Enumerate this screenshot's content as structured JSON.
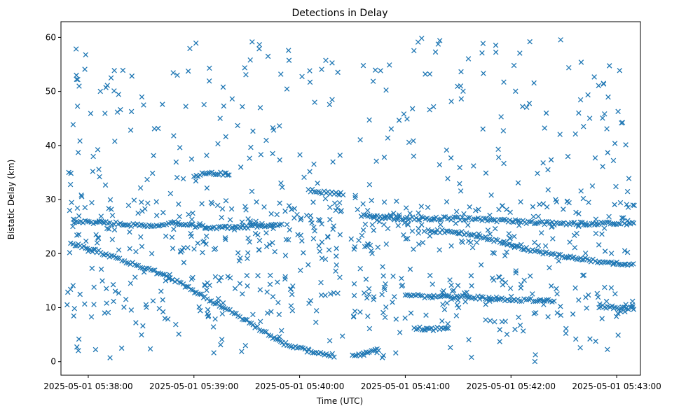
{
  "chart_data": {
    "type": "scatter",
    "title": "Detections in Delay",
    "xlabel": "Time (UTC)",
    "ylabel": "Bistatic Delay (km)",
    "x_unit": "seconds after 2025-05-01 05:37:00 UTC",
    "xlim": [
      44.5,
      373.5
    ],
    "ylim": [
      -2.5,
      62.9
    ],
    "x_ticks": [
      {
        "value": 60,
        "label": "2025-05-01 05:38:00"
      },
      {
        "value": 120,
        "label": "2025-05-01 05:39:00"
      },
      {
        "value": 180,
        "label": "2025-05-01 05:40:00"
      },
      {
        "value": 240,
        "label": "2025-05-01 05:41:00"
      },
      {
        "value": 300,
        "label": "2025-05-01 05:42:00"
      },
      {
        "value": 360,
        "label": "2025-05-01 05:43:00"
      }
    ],
    "y_ticks": [
      {
        "value": 0,
        "label": "0"
      },
      {
        "value": 10,
        "label": "10"
      },
      {
        "value": 20,
        "label": "20"
      },
      {
        "value": 30,
        "label": "30"
      },
      {
        "value": 40,
        "label": "40"
      },
      {
        "value": 50,
        "label": "50"
      },
      {
        "value": 60,
        "label": "60"
      }
    ],
    "marker": "x",
    "color": "#1f77b4",
    "grid": false,
    "tracks": [
      {
        "name": "descending track A",
        "points": [
          [
            50,
            22
          ],
          [
            60,
            21
          ],
          [
            75,
            19.3
          ],
          [
            95,
            17
          ],
          [
            110,
            15
          ],
          [
            120,
            13
          ],
          [
            140,
            9.5
          ],
          [
            155,
            6.5
          ],
          [
            170,
            3.5
          ],
          [
            185,
            2
          ],
          [
            200,
            1.1
          ]
        ]
      },
      {
        "name": "ascending track A",
        "points": [
          [
            210,
            1
          ],
          [
            215,
            1.3
          ],
          [
            225,
            2.3
          ]
        ]
      },
      {
        "name": "track near 26 km (early)",
        "points": [
          [
            52,
            26
          ],
          [
            70,
            25.7
          ],
          [
            90,
            25.2
          ],
          [
            110,
            25.5
          ],
          [
            130,
            24.8
          ],
          [
            155,
            25
          ],
          [
            170,
            25.2
          ]
        ]
      },
      {
        "name": "track near 26 km (late)",
        "points": [
          [
            215,
            27
          ],
          [
            240,
            26.5
          ],
          [
            270,
            26.5
          ],
          [
            300,
            26
          ],
          [
            330,
            25.5
          ],
          [
            370,
            25.6
          ]
        ]
      },
      {
        "name": "descending track B",
        "points": [
          [
            253,
            24.2
          ],
          [
            270,
            24
          ],
          [
            285,
            23
          ],
          [
            300,
            21.5
          ],
          [
            320,
            20
          ],
          [
            340,
            19
          ],
          [
            370,
            17.8
          ]
        ]
      },
      {
        "name": "track near 12 km",
        "points": [
          [
            240,
            12.3
          ],
          [
            255,
            12
          ],
          [
            275,
            12
          ],
          [
            300,
            11.5
          ],
          [
            325,
            11.2
          ]
        ]
      },
      {
        "name": "track near 6 km",
        "points": [
          [
            245,
            6.2
          ],
          [
            255,
            6
          ],
          [
            265,
            6.3
          ]
        ]
      },
      {
        "name": "track near 10 km (end)",
        "points": [
          [
            350,
            10.2
          ],
          [
            370,
            9.8
          ]
        ]
      },
      {
        "name": "track near 35 km",
        "points": [
          [
            120,
            34.5
          ],
          [
            130,
            34.8
          ],
          [
            140,
            34.8
          ]
        ]
      },
      {
        "name": "track near 31.5 km",
        "points": [
          [
            185,
            31.8
          ],
          [
            195,
            31.2
          ],
          [
            205,
            31
          ]
        ]
      }
    ],
    "density": {
      "x_range": [
        48,
        370
      ],
      "y_range": [
        0,
        60
      ],
      "approx_total_points": 1500,
      "description": "dense cloud of scattered clutter detections between 0 and 60 km with higher density between 20 and 30 km"
    }
  }
}
